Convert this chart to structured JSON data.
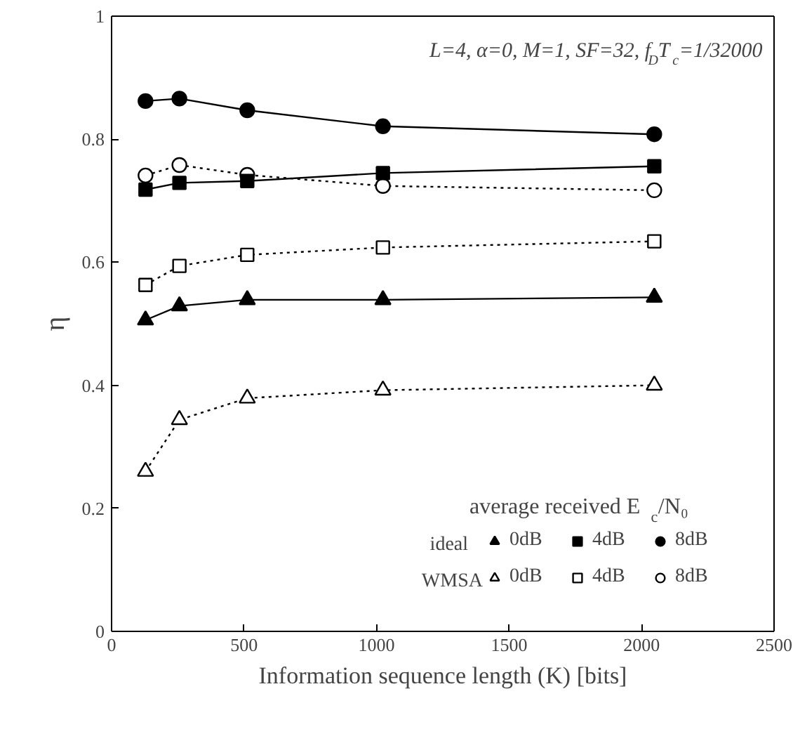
{
  "chart_data": {
    "type": "line",
    "xlabel": "Information sequence length (K) [bits]",
    "ylabel": "η",
    "xlim": [
      0,
      2500
    ],
    "xticks": [
      0,
      500,
      1000,
      1500,
      2000,
      2500
    ],
    "ylim": [
      0,
      1
    ],
    "yticks": [
      0,
      0.2,
      0.4,
      0.6,
      0.8,
      1
    ],
    "grid": false,
    "legend": "bottom right",
    "legend_title": "average received E$_{c}$/N₀",
    "annotations": [
      "L=4, α=0, M=1, SF=32, f$_{D}$T$_{c}$=1/32000",
      "ideal",
      "WMSA"
    ],
    "x": [
      128,
      256,
      512,
      1024,
      2048
    ],
    "series": [
      {
        "name": "0dB",
        "color": "#000000",
        "marker": "triangle",
        "line_style": "solid",
        "values": [
          0.506,
          0.529,
          0.539,
          0.539,
          0.543
        ]
      },
      {
        "name": "4dB",
        "color": "#000000",
        "marker": "square",
        "line_style": "solid",
        "values": [
          0.718,
          0.729,
          0.732,
          0.745,
          0.756
        ]
      },
      {
        "name": "8dB",
        "color": "#000000",
        "marker": "circle",
        "line_style": "solid",
        "values": [
          0.862,
          0.866,
          0.847,
          0.821,
          0.808
        ]
      },
      {
        "name": "0dB",
        "color": "#000000",
        "marker": "triangle",
        "line_style": "dotted",
        "values": [
          0.26,
          0.344,
          0.379,
          0.392,
          0.4
        ]
      },
      {
        "name": "4dB",
        "color": "#000000",
        "marker": "square",
        "line_style": "dotted",
        "values": [
          0.563,
          0.594,
          0.612,
          0.624,
          0.634
        ]
      },
      {
        "name": "8dB",
        "color": "#000000",
        "marker": "circle",
        "line_style": "dotted",
        "values": [
          0.741,
          0.758,
          0.742,
          0.724,
          0.717
        ]
      }
    ]
  }
}
